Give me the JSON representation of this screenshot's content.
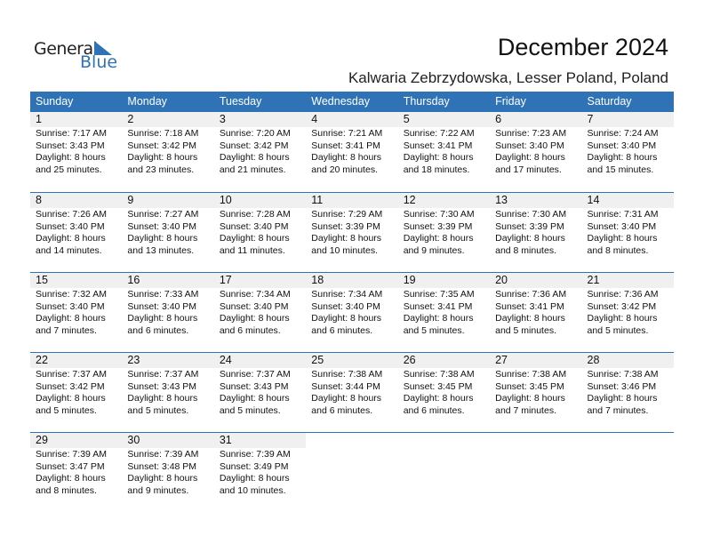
{
  "logo": {
    "text1": "General",
    "text2": "Blue",
    "accent": "#2f73b6"
  },
  "title": "December 2024",
  "subtitle": "Kalwaria Zebrzydowska, Lesser Poland, Poland",
  "weekdays": [
    "Sunday",
    "Monday",
    "Tuesday",
    "Wednesday",
    "Thursday",
    "Friday",
    "Saturday"
  ],
  "weeks": [
    [
      {
        "day": "1",
        "sunrise": "Sunrise: 7:17 AM",
        "sunset": "Sunset: 3:43 PM",
        "daylight1": "Daylight: 8 hours",
        "daylight2": "and 25 minutes."
      },
      {
        "day": "2",
        "sunrise": "Sunrise: 7:18 AM",
        "sunset": "Sunset: 3:42 PM",
        "daylight1": "Daylight: 8 hours",
        "daylight2": "and 23 minutes."
      },
      {
        "day": "3",
        "sunrise": "Sunrise: 7:20 AM",
        "sunset": "Sunset: 3:42 PM",
        "daylight1": "Daylight: 8 hours",
        "daylight2": "and 21 minutes."
      },
      {
        "day": "4",
        "sunrise": "Sunrise: 7:21 AM",
        "sunset": "Sunset: 3:41 PM",
        "daylight1": "Daylight: 8 hours",
        "daylight2": "and 20 minutes."
      },
      {
        "day": "5",
        "sunrise": "Sunrise: 7:22 AM",
        "sunset": "Sunset: 3:41 PM",
        "daylight1": "Daylight: 8 hours",
        "daylight2": "and 18 minutes."
      },
      {
        "day": "6",
        "sunrise": "Sunrise: 7:23 AM",
        "sunset": "Sunset: 3:40 PM",
        "daylight1": "Daylight: 8 hours",
        "daylight2": "and 17 minutes."
      },
      {
        "day": "7",
        "sunrise": "Sunrise: 7:24 AM",
        "sunset": "Sunset: 3:40 PM",
        "daylight1": "Daylight: 8 hours",
        "daylight2": "and 15 minutes."
      }
    ],
    [
      {
        "day": "8",
        "sunrise": "Sunrise: 7:26 AM",
        "sunset": "Sunset: 3:40 PM",
        "daylight1": "Daylight: 8 hours",
        "daylight2": "and 14 minutes."
      },
      {
        "day": "9",
        "sunrise": "Sunrise: 7:27 AM",
        "sunset": "Sunset: 3:40 PM",
        "daylight1": "Daylight: 8 hours",
        "daylight2": "and 13 minutes."
      },
      {
        "day": "10",
        "sunrise": "Sunrise: 7:28 AM",
        "sunset": "Sunset: 3:40 PM",
        "daylight1": "Daylight: 8 hours",
        "daylight2": "and 11 minutes."
      },
      {
        "day": "11",
        "sunrise": "Sunrise: 7:29 AM",
        "sunset": "Sunset: 3:39 PM",
        "daylight1": "Daylight: 8 hours",
        "daylight2": "and 10 minutes."
      },
      {
        "day": "12",
        "sunrise": "Sunrise: 7:30 AM",
        "sunset": "Sunset: 3:39 PM",
        "daylight1": "Daylight: 8 hours",
        "daylight2": "and 9 minutes."
      },
      {
        "day": "13",
        "sunrise": "Sunrise: 7:30 AM",
        "sunset": "Sunset: 3:39 PM",
        "daylight1": "Daylight: 8 hours",
        "daylight2": "and 8 minutes."
      },
      {
        "day": "14",
        "sunrise": "Sunrise: 7:31 AM",
        "sunset": "Sunset: 3:40 PM",
        "daylight1": "Daylight: 8 hours",
        "daylight2": "and 8 minutes."
      }
    ],
    [
      {
        "day": "15",
        "sunrise": "Sunrise: 7:32 AM",
        "sunset": "Sunset: 3:40 PM",
        "daylight1": "Daylight: 8 hours",
        "daylight2": "and 7 minutes."
      },
      {
        "day": "16",
        "sunrise": "Sunrise: 7:33 AM",
        "sunset": "Sunset: 3:40 PM",
        "daylight1": "Daylight: 8 hours",
        "daylight2": "and 6 minutes."
      },
      {
        "day": "17",
        "sunrise": "Sunrise: 7:34 AM",
        "sunset": "Sunset: 3:40 PM",
        "daylight1": "Daylight: 8 hours",
        "daylight2": "and 6 minutes."
      },
      {
        "day": "18",
        "sunrise": "Sunrise: 7:34 AM",
        "sunset": "Sunset: 3:40 PM",
        "daylight1": "Daylight: 8 hours",
        "daylight2": "and 6 minutes."
      },
      {
        "day": "19",
        "sunrise": "Sunrise: 7:35 AM",
        "sunset": "Sunset: 3:41 PM",
        "daylight1": "Daylight: 8 hours",
        "daylight2": "and 5 minutes."
      },
      {
        "day": "20",
        "sunrise": "Sunrise: 7:36 AM",
        "sunset": "Sunset: 3:41 PM",
        "daylight1": "Daylight: 8 hours",
        "daylight2": "and 5 minutes."
      },
      {
        "day": "21",
        "sunrise": "Sunrise: 7:36 AM",
        "sunset": "Sunset: 3:42 PM",
        "daylight1": "Daylight: 8 hours",
        "daylight2": "and 5 minutes."
      }
    ],
    [
      {
        "day": "22",
        "sunrise": "Sunrise: 7:37 AM",
        "sunset": "Sunset: 3:42 PM",
        "daylight1": "Daylight: 8 hours",
        "daylight2": "and 5 minutes."
      },
      {
        "day": "23",
        "sunrise": "Sunrise: 7:37 AM",
        "sunset": "Sunset: 3:43 PM",
        "daylight1": "Daylight: 8 hours",
        "daylight2": "and 5 minutes."
      },
      {
        "day": "24",
        "sunrise": "Sunrise: 7:37 AM",
        "sunset": "Sunset: 3:43 PM",
        "daylight1": "Daylight: 8 hours",
        "daylight2": "and 5 minutes."
      },
      {
        "day": "25",
        "sunrise": "Sunrise: 7:38 AM",
        "sunset": "Sunset: 3:44 PM",
        "daylight1": "Daylight: 8 hours",
        "daylight2": "and 6 minutes."
      },
      {
        "day": "26",
        "sunrise": "Sunrise: 7:38 AM",
        "sunset": "Sunset: 3:45 PM",
        "daylight1": "Daylight: 8 hours",
        "daylight2": "and 6 minutes."
      },
      {
        "day": "27",
        "sunrise": "Sunrise: 7:38 AM",
        "sunset": "Sunset: 3:45 PM",
        "daylight1": "Daylight: 8 hours",
        "daylight2": "and 7 minutes."
      },
      {
        "day": "28",
        "sunrise": "Sunrise: 7:38 AM",
        "sunset": "Sunset: 3:46 PM",
        "daylight1": "Daylight: 8 hours",
        "daylight2": "and 7 minutes."
      }
    ],
    [
      {
        "day": "29",
        "sunrise": "Sunrise: 7:39 AM",
        "sunset": "Sunset: 3:47 PM",
        "daylight1": "Daylight: 8 hours",
        "daylight2": "and 8 minutes."
      },
      {
        "day": "30",
        "sunrise": "Sunrise: 7:39 AM",
        "sunset": "Sunset: 3:48 PM",
        "daylight1": "Daylight: 8 hours",
        "daylight2": "and 9 minutes."
      },
      {
        "day": "31",
        "sunrise": "Sunrise: 7:39 AM",
        "sunset": "Sunset: 3:49 PM",
        "daylight1": "Daylight: 8 hours",
        "daylight2": "and 10 minutes."
      },
      null,
      null,
      null,
      null
    ]
  ]
}
